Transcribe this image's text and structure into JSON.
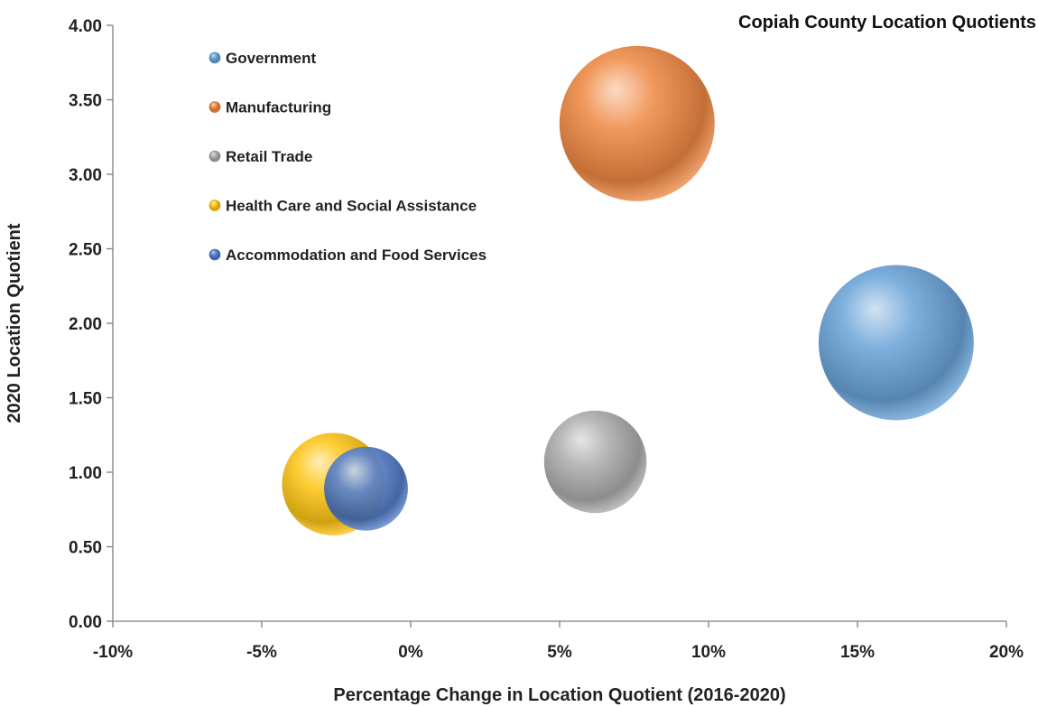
{
  "chart_data": {
    "type": "bubble",
    "title": "Copiah County Location Quotients",
    "xlabel": "Percentage Change in Location Quotient (2016-2020)",
    "ylabel": "2020 Location Quotient",
    "xlim": [
      -0.1,
      0.2
    ],
    "ylim": [
      0,
      4
    ],
    "x_ticks": [
      -0.1,
      -0.05,
      0,
      0.05,
      0.1,
      0.15,
      0.2
    ],
    "x_tick_labels": [
      "-10%",
      "-5%",
      "0%",
      "5%",
      "10%",
      "15%",
      "20%"
    ],
    "y_ticks": [
      0,
      0.5,
      1,
      1.5,
      2,
      2.5,
      3,
      3.5,
      4
    ],
    "y_tick_labels": [
      "0.00",
      "0.50",
      "1.00",
      "1.50",
      "2.00",
      "2.50",
      "3.00",
      "3.50",
      "4.00"
    ],
    "grid": false,
    "legend_position": "top-left",
    "series": [
      {
        "name": "Government",
        "x": 0.163,
        "y": 1.87,
        "relative_size": 1.0,
        "color": "#5b9bd5"
      },
      {
        "name": "Manufacturing",
        "x": 0.076,
        "y": 3.34,
        "relative_size": 1.0,
        "color": "#ed7d31"
      },
      {
        "name": "Retail Trade",
        "x": 0.062,
        "y": 1.07,
        "relative_size": 0.66,
        "color": "#a5a5a5"
      },
      {
        "name": "Health Care and Social Assistance",
        "x": -0.026,
        "y": 0.92,
        "relative_size": 0.66,
        "color": "#ffc000"
      },
      {
        "name": "Accommodation and Food Services",
        "x": -0.015,
        "y": 0.89,
        "relative_size": 0.54,
        "color": "#4472c4"
      }
    ]
  }
}
